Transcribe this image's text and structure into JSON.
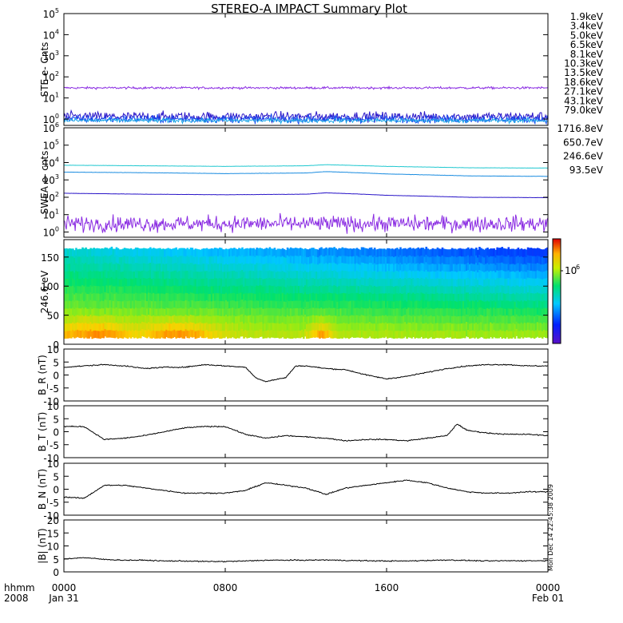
{
  "title": "STEREO-A IMPACT Summary Plot",
  "colors": {
    "axis": "#000000",
    "background": "#ffffff",
    "trace": "#000000"
  },
  "stamp": "Mon Dec 14 22:45:38 2009",
  "time_axis": {
    "corner_top": "hhmm",
    "corner_bottom": "2008",
    "ticks": [
      {
        "t": 0,
        "label": "0000",
        "sub": "Jan 31"
      },
      {
        "t": 8,
        "label": "0800",
        "sub": ""
      },
      {
        "t": 16,
        "label": "1600",
        "sub": ""
      },
      {
        "t": 24,
        "label": "0000",
        "sub": "Feb 01"
      }
    ]
  },
  "legend_ste": [
    {
      "label": "1.9keV",
      "color": "#8a2be2"
    },
    {
      "label": "3.4keV",
      "color": "#2a16c8"
    },
    {
      "label": "5.0keV",
      "color": "#1a4cf0"
    },
    {
      "label": "6.5keV",
      "color": "#19a6e6"
    },
    {
      "label": "8.1keV",
      "color": "#20d4d4"
    },
    {
      "label": "10.3keV",
      "color": "#27c84a"
    },
    {
      "label": "13.5keV",
      "color": "#55d41a"
    },
    {
      "label": "18.6keV",
      "color": "#b4d41a"
    },
    {
      "label": "27.1keV",
      "color": "#e8c81a"
    },
    {
      "label": "43.1keV",
      "color": "#e88a10"
    },
    {
      "label": "79.0keV",
      "color": "#e01818"
    }
  ],
  "legend_swea": [
    {
      "label": "1716.8eV",
      "color": "#8a2be2"
    },
    {
      "label": "650.7eV",
      "color": "#2a16c8"
    },
    {
      "label": "246.6eV",
      "color": "#1a8ce0"
    },
    {
      "label": "93.5eV",
      "color": "#20c8d0"
    }
  ],
  "colorbar": {
    "label": "10",
    "exponent": "6"
  },
  "chart_data": [
    {
      "type": "line",
      "ylabel": "STE e- Cnts",
      "yscale": "log",
      "ylim": [
        0.5,
        100000
      ],
      "yticks": [
        {
          "v": 1,
          "base": "10",
          "exp": "0"
        },
        {
          "v": 10,
          "base": "10",
          "exp": "1"
        },
        {
          "v": 100,
          "base": "10",
          "exp": "2"
        },
        {
          "v": 1000,
          "base": "10",
          "exp": "3"
        },
        {
          "v": 10000,
          "base": "10",
          "exp": "4"
        },
        {
          "v": 100000,
          "base": "10",
          "exp": "5"
        }
      ],
      "xlim_hours": [
        0,
        24
      ],
      "series": [
        {
          "name": "1.9keV",
          "color": "#8a2be2",
          "level": 30,
          "noise": 0.04
        },
        {
          "name": "3.4keV",
          "color": "#2a16c8",
          "level": 1.3,
          "noise": 0.18
        },
        {
          "name": "5.0keV",
          "color": "#1a4cf0",
          "level": 1.0,
          "noise": 0.14
        },
        {
          "name": "6.5keV",
          "color": "#19a6e6",
          "level": 0.85,
          "noise": 0.08
        }
      ]
    },
    {
      "type": "line",
      "ylabel": "SWEA e- cnts",
      "yscale": "log",
      "ylim": [
        0.5,
        1000000
      ],
      "yticks": [
        {
          "v": 1,
          "base": "10",
          "exp": "0"
        },
        {
          "v": 10,
          "base": "10",
          "exp": "1"
        },
        {
          "v": 100,
          "base": "10",
          "exp": "2"
        },
        {
          "v": 1000,
          "base": "10",
          "exp": "3"
        },
        {
          "v": 10000,
          "base": "10",
          "exp": "4"
        },
        {
          "v": 100000,
          "base": "10",
          "exp": "5"
        },
        {
          "v": 1000000,
          "base": "10",
          "exp": "6"
        }
      ],
      "xlim_hours": [
        0,
        24
      ],
      "series": [
        {
          "name": "93.5eV",
          "color": "#20c8d0",
          "x": [
            0,
            4,
            8,
            12,
            13,
            16,
            20,
            24
          ],
          "y": [
            7000,
            6500,
            6000,
            6500,
            7500,
            6000,
            5000,
            4800
          ]
        },
        {
          "name": "246.6eV",
          "color": "#1a8ce0",
          "x": [
            0,
            4,
            8,
            12,
            13,
            16,
            20,
            24
          ],
          "y": [
            2800,
            2600,
            2300,
            2500,
            3000,
            2200,
            1700,
            1600
          ]
        },
        {
          "name": "650.7eV",
          "color": "#2a16c8",
          "x": [
            0,
            4,
            8,
            12,
            13,
            16,
            20,
            24
          ],
          "y": [
            170,
            150,
            140,
            150,
            180,
            130,
            100,
            95
          ]
        },
        {
          "name": "1716.8eV",
          "color": "#8a2be2",
          "x": [
            0,
            12,
            24
          ],
          "y": [
            3,
            3,
            3
          ],
          "noise": 0.35
        }
      ]
    },
    {
      "type": "heatmap",
      "ylabel": "246.6 eV",
      "ylim": [
        0,
        180
      ],
      "yticks": [
        0,
        50,
        100,
        150
      ],
      "xlim_hours": [
        0,
        24
      ],
      "z_scale": "log",
      "z_tick": "10^6",
      "hotspots_hours": [
        1.6,
        5.6,
        12.7
      ]
    },
    {
      "type": "line",
      "ylabel": "B_R (nT)",
      "ylim": [
        -10,
        10
      ],
      "yticks": [
        -10,
        -5,
        0,
        5,
        10
      ],
      "xlim_hours": [
        0,
        24
      ],
      "x": [
        0,
        1,
        2,
        3,
        4,
        5,
        6,
        7,
        8,
        9,
        9.5,
        10,
        11,
        11.5,
        12,
        13,
        14,
        15,
        16,
        17,
        18,
        19,
        20,
        21,
        22,
        23,
        24
      ],
      "y": [
        3,
        3.5,
        4,
        3.5,
        2.5,
        3,
        3,
        4,
        3.5,
        3,
        -1,
        -2.5,
        -1,
        3.5,
        3.5,
        2.5,
        2,
        0,
        -1.5,
        -0.5,
        1,
        2.5,
        3.5,
        4,
        4,
        3.5,
        3.5
      ]
    },
    {
      "type": "line",
      "ylabel": "B_T (nT)",
      "ylim": [
        -10,
        10
      ],
      "yticks": [
        -10,
        -5,
        0,
        5,
        10
      ],
      "xlim_hours": [
        0,
        24
      ],
      "x": [
        0,
        1,
        2,
        3,
        4,
        5,
        6,
        7,
        8,
        9,
        10,
        11,
        12,
        13,
        14,
        15,
        16,
        17,
        18,
        19,
        19.5,
        20,
        21,
        22,
        23,
        24
      ],
      "y": [
        2,
        2,
        -3,
        -2.5,
        -1.5,
        0,
        1.5,
        2,
        2,
        -1,
        -2.5,
        -1.5,
        -2,
        -2.5,
        -3.5,
        -3,
        -3,
        -3.5,
        -2.5,
        -1.5,
        3,
        0.5,
        -0.5,
        -1,
        -1,
        -1.5
      ]
    },
    {
      "type": "line",
      "ylabel": "B_N (nT)",
      "ylim": [
        -10,
        10
      ],
      "yticks": [
        -10,
        -5,
        0,
        5,
        10
      ],
      "xlim_hours": [
        0,
        24
      ],
      "x": [
        0,
        1,
        2,
        3,
        4,
        5,
        6,
        7,
        8,
        9,
        10,
        11,
        12,
        13,
        14,
        15,
        16,
        17,
        18,
        19,
        20,
        21,
        22,
        23,
        24
      ],
      "y": [
        -3,
        -3.5,
        1.5,
        1.5,
        0.5,
        -0.5,
        -1.5,
        -1.5,
        -1.5,
        -0.5,
        2.5,
        1.5,
        0.5,
        -2,
        0.5,
        1.5,
        2.5,
        3.5,
        2.5,
        0.5,
        -1,
        -1.5,
        -1.5,
        -1,
        -1
      ]
    },
    {
      "type": "line",
      "ylabel": "|B| (nT)",
      "ylim": [
        0,
        20
      ],
      "yticks": [
        0,
        5,
        10,
        15,
        20
      ],
      "xlim_hours": [
        0,
        24
      ],
      "x": [
        0,
        1,
        2,
        3,
        4,
        5,
        6,
        7,
        8,
        9,
        10,
        11,
        12,
        13,
        14,
        15,
        16,
        17,
        18,
        19,
        20,
        21,
        22,
        23,
        24
      ],
      "y": [
        5,
        5.5,
        4.8,
        4.5,
        4.5,
        4.2,
        4.2,
        4,
        4,
        4.2,
        4.5,
        4.5,
        4.5,
        4.6,
        4.4,
        4.3,
        4.2,
        4.2,
        4.4,
        4.6,
        4.4,
        4.2,
        4.3,
        4.3,
        4.3
      ]
    }
  ]
}
